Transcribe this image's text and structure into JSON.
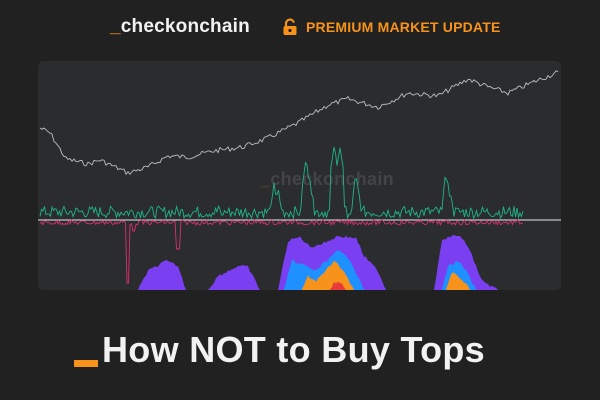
{
  "header": {
    "brand_prefix": "_",
    "brand_name": "checkonchain",
    "premium_label": "PREMIUM MARKET UPDATE"
  },
  "chart": {
    "watermark_prefix": "_",
    "watermark_name": "checkonchain",
    "colors": {
      "price_line": "#d8d8d8",
      "positive_osc": "#1fb48a",
      "negative_osc": "#d6336c",
      "zero_line": "#e8e8e8",
      "band_purple": "#7b3ff2",
      "band_blue": "#1e90ff",
      "band_orange": "#f7931a",
      "band_red": "#e83a3a"
    }
  },
  "title": {
    "prefix_bar_color": "#f7931a",
    "text": "How NOT to Buy Tops"
  }
}
